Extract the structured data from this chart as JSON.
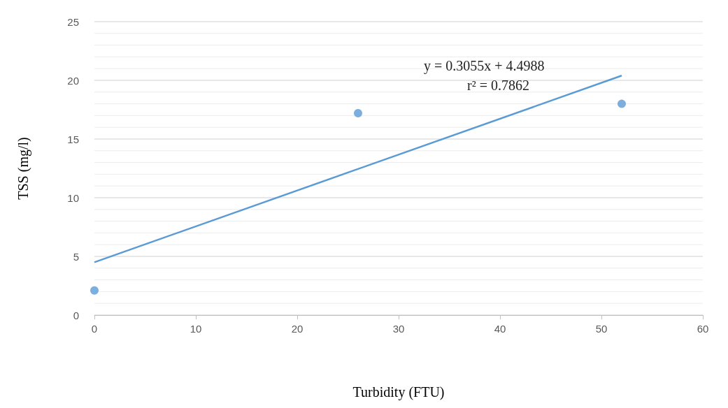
{
  "chart_data": {
    "type": "scatter",
    "xlabel": "Turbidity (FTU)",
    "ylabel": "TSS (mg/l)",
    "series": [
      {
        "color": "#5b9bd5",
        "x": [
          0,
          26,
          52
        ],
        "values": [
          2.1,
          17.2,
          18
        ]
      },
      {
        "type": "line",
        "color": "#5b9bd5",
        "x": [
          0,
          52
        ],
        "values": [
          4.5,
          20.4
        ],
        "marker": "none"
      }
    ],
    "xlim": [
      0,
      60
    ],
    "xticks": [
      0,
      10,
      20,
      30,
      40,
      50,
      60
    ],
    "ylim": [
      0,
      25
    ],
    "yticks": [
      0,
      {
        "value": 1,
        "label": null
      },
      {
        "value": 2,
        "label": null
      },
      {
        "value": 3,
        "label": null
      },
      {
        "value": 4,
        "label": null
      },
      5,
      {
        "value": 6,
        "label": null
      },
      {
        "value": 7,
        "label": null
      },
      {
        "value": 8,
        "label": null
      },
      {
        "value": 9,
        "label": null
      },
      10,
      {
        "value": 11,
        "label": null
      },
      {
        "value": 12,
        "label": null
      },
      {
        "value": 13,
        "label": null
      },
      {
        "value": 14,
        "label": null
      },
      15,
      {
        "value": 16,
        "label": null
      },
      {
        "value": 17,
        "label": null
      },
      {
        "value": 18,
        "label": null
      },
      {
        "value": 19,
        "label": null
      },
      20,
      {
        "value": 21,
        "label": null
      },
      {
        "value": 22,
        "label": null
      },
      {
        "value": 23,
        "label": null
      },
      {
        "value": 24,
        "label": null
      },
      25
    ],
    "grid": "y",
    "marker": "circle",
    "annotations": [
      "y = 0.3055x + 4.4988",
      "r² = 0.7862"
    ]
  }
}
